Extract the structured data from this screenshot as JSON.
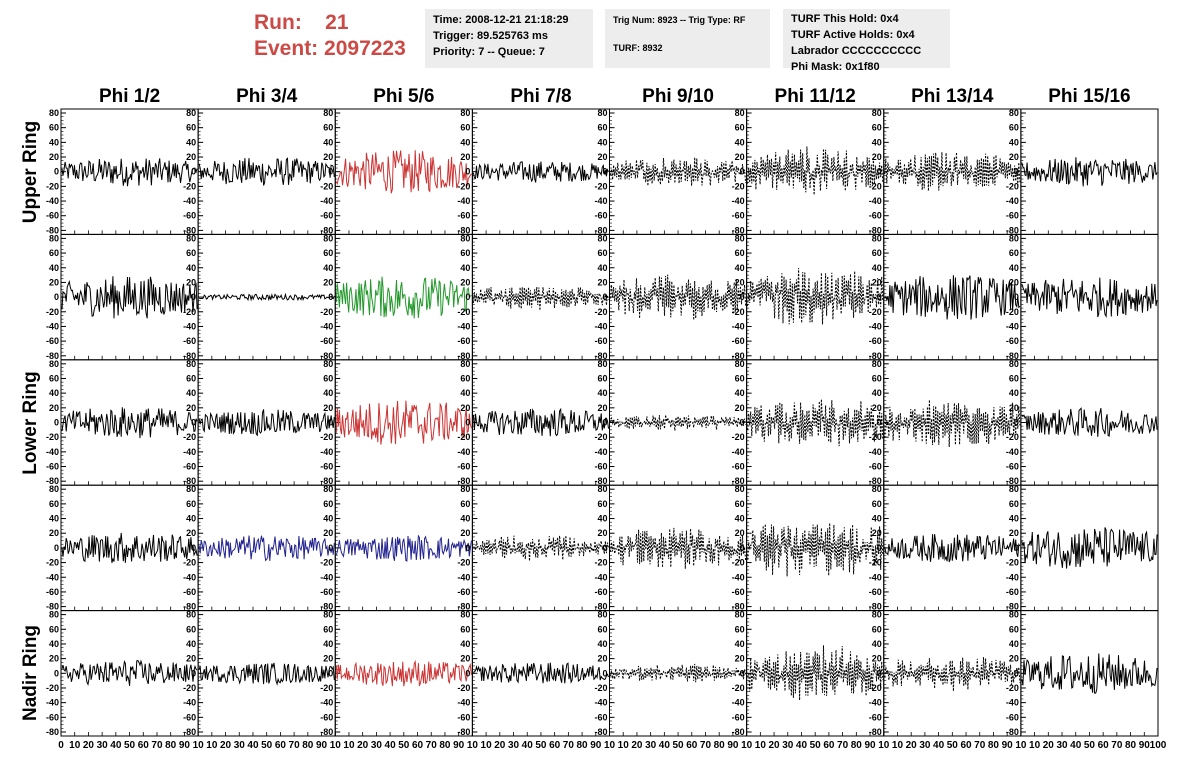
{
  "header": {
    "run_label": "Run:",
    "run_value": "21",
    "event_label": "Event:",
    "event_value": "2097223",
    "time_line": "Time: 2008-12-21 21:18:29",
    "trigger_line": "Trigger: 89.525763 ms",
    "priority_line": "Priority: 7 -- Queue: 7",
    "trig_num_line": "Trig Num: 8923 -- Trig Type: RF",
    "turf_line": "TURF: 8932",
    "turf_hold_line": "TURF This Hold: 0x4",
    "turf_active_line": "TURF Active Holds: 0x4",
    "labrador_line": "Labrador CCCCCCCCCC",
    "phi_mask_line": "Phi Mask: 0x1f80"
  },
  "colors": {
    "header_red": "#cc4a46",
    "trace_black": "#000000",
    "trace_red": "#cc3333",
    "trace_green": "#22992a",
    "trace_blue": "#23238f",
    "box_background": "#ededed"
  },
  "chart_data": {
    "type": "line",
    "columns": [
      "Phi 1/2",
      "Phi 3/4",
      "Phi 5/6",
      "Phi 7/8",
      "Phi 9/10",
      "Phi 11/12",
      "Phi 13/14",
      "Phi 15/16"
    ],
    "rows": [
      "Upper Ring",
      "",
      "Lower Ring",
      "",
      "Nadir Ring"
    ],
    "ylim": [
      -80,
      80
    ],
    "y_ticks": [
      -80,
      -60,
      -40,
      -20,
      0,
      20,
      40,
      60,
      80
    ],
    "xlim": [
      0,
      100
    ],
    "x_tick_labels": [
      "0",
      "10",
      "20",
      "30",
      "40",
      "50",
      "60",
      "70",
      "80",
      "90",
      "10",
      "10",
      "20",
      "30",
      "40",
      "50",
      "60",
      "70",
      "80",
      "90",
      "10",
      "10",
      "20",
      "30",
      "40",
      "50",
      "60",
      "70",
      "80",
      "90",
      "10",
      "10",
      "20",
      "30",
      "40",
      "50",
      "60",
      "70",
      "80",
      "90",
      "10",
      "10",
      "20",
      "30",
      "40",
      "50",
      "60",
      "70",
      "80",
      "90",
      "10",
      "10",
      "20",
      "30",
      "40",
      "50",
      "60",
      "70",
      "80",
      "90",
      "10",
      "10",
      "20",
      "30",
      "40",
      "50",
      "60",
      "70",
      "80",
      "90",
      "10",
      "10",
      "20",
      "30",
      "40",
      "50",
      "60",
      "70",
      "80",
      "90",
      "100"
    ],
    "panels": [
      [
        {
          "color": "black",
          "style": "solid",
          "amplitude": 20
        },
        {
          "color": "black",
          "style": "solid",
          "amplitude": 20
        },
        {
          "color": "red",
          "style": "solid",
          "amplitude": 30
        },
        {
          "color": "black",
          "style": "solid",
          "amplitude": 15
        },
        {
          "color": "black",
          "style": "dashed",
          "amplitude": 22
        },
        {
          "color": "black",
          "style": "dashed",
          "amplitude": 35
        },
        {
          "color": "black",
          "style": "dashed",
          "amplitude": 30
        },
        {
          "color": "black",
          "style": "solid",
          "amplitude": 20
        }
      ],
      [
        {
          "color": "black",
          "style": "solid",
          "amplitude": 30
        },
        {
          "color": "black",
          "style": "solid",
          "amplitude": 4
        },
        {
          "color": "green",
          "style": "solid",
          "amplitude": 30
        },
        {
          "color": "black",
          "style": "dashed",
          "amplitude": 18
        },
        {
          "color": "black",
          "style": "dashed",
          "amplitude": 32
        },
        {
          "color": "black",
          "style": "dashed",
          "amplitude": 42
        },
        {
          "color": "black",
          "style": "solid",
          "amplitude": 32
        },
        {
          "color": "black",
          "style": "solid",
          "amplitude": 28
        }
      ],
      [
        {
          "color": "black",
          "style": "solid",
          "amplitude": 22
        },
        {
          "color": "black",
          "style": "solid",
          "amplitude": 18
        },
        {
          "color": "red",
          "style": "solid",
          "amplitude": 32
        },
        {
          "color": "black",
          "style": "solid",
          "amplitude": 20
        },
        {
          "color": "black",
          "style": "dashed",
          "amplitude": 12
        },
        {
          "color": "black",
          "style": "dashed",
          "amplitude": 35
        },
        {
          "color": "black",
          "style": "dashed",
          "amplitude": 35
        },
        {
          "color": "black",
          "style": "solid",
          "amplitude": 20
        }
      ],
      [
        {
          "color": "black",
          "style": "solid",
          "amplitude": 22
        },
        {
          "color": "blue",
          "style": "solid",
          "amplitude": 18
        },
        {
          "color": "blue",
          "style": "solid",
          "amplitude": 18
        },
        {
          "color": "black",
          "style": "dashed",
          "amplitude": 18
        },
        {
          "color": "black",
          "style": "dashed",
          "amplitude": 32
        },
        {
          "color": "black",
          "style": "dashed",
          "amplitude": 42
        },
        {
          "color": "black",
          "style": "solid",
          "amplitude": 20
        },
        {
          "color": "black",
          "style": "solid",
          "amplitude": 30
        }
      ],
      [
        {
          "color": "black",
          "style": "solid",
          "amplitude": 18
        },
        {
          "color": "black",
          "style": "solid",
          "amplitude": 15
        },
        {
          "color": "red",
          "style": "solid",
          "amplitude": 18
        },
        {
          "color": "black",
          "style": "solid",
          "amplitude": 15
        },
        {
          "color": "black",
          "style": "dashed",
          "amplitude": 14
        },
        {
          "color": "black",
          "style": "dashed",
          "amplitude": 40
        },
        {
          "color": "black",
          "style": "dashed",
          "amplitude": 25
        },
        {
          "color": "black",
          "style": "solid",
          "amplitude": 28
        }
      ]
    ]
  }
}
